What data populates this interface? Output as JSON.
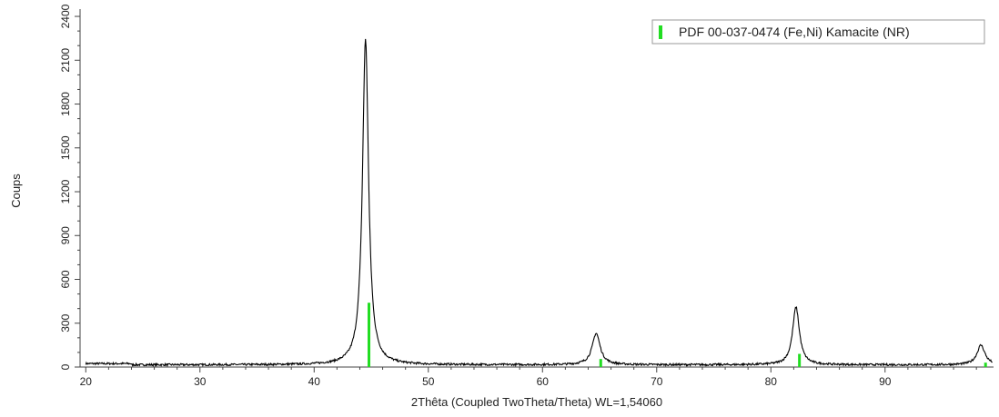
{
  "chart_data": {
    "type": "line",
    "title": "",
    "xlabel": "2Thêta (Coupled TwoTheta/Theta) WL=1,54060",
    "ylabel": "Coups",
    "xlim": [
      19.5,
      99.5
    ],
    "ylim": [
      0,
      2450
    ],
    "x_ticks": [
      20,
      30,
      40,
      50,
      60,
      70,
      80,
      90
    ],
    "y_ticks": [
      0,
      300,
      600,
      900,
      1200,
      1500,
      1800,
      2100,
      2400
    ],
    "grid": false,
    "legend_position": "top-right",
    "colors": {
      "pattern": "#000000",
      "reference": "#22dd22",
      "axis": "#444444",
      "legend_border": "#9a9a9a"
    },
    "series": [
      {
        "type": "line",
        "baseline": 15,
        "peaks": [
          {
            "x": 44.5,
            "y": 2245
          },
          {
            "x": 64.7,
            "y": 230
          },
          {
            "x": 82.2,
            "y": 410
          },
          {
            "x": 98.4,
            "y": 150
          }
        ]
      },
      {
        "name": "PDF 00-037-0474 (Fe,Ni) Kamacite (NR)",
        "type": "stick",
        "x": [
          44.8,
          65.1,
          82.5,
          98.8
        ],
        "y": [
          440,
          55,
          90,
          30
        ]
      }
    ]
  }
}
